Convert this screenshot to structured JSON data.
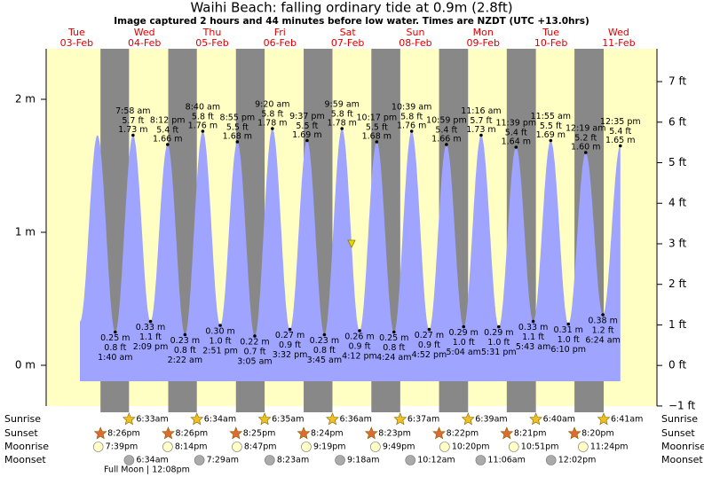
{
  "chart_data": {
    "type": "tide",
    "title": "Waihi Beach: falling  ordinary tide at 0.9m (2.8ft)",
    "subtitle": "Image captured 2 hours and 44 minutes before low water. Times are NZDT (UTC +13.0hrs)",
    "ylim": [
      -0.3,
      2.38
    ],
    "yticks": [
      {
        "value": 0,
        "label": "0 m"
      },
      {
        "value": 1,
        "label": "1 m"
      },
      {
        "value": 2,
        "label": "2 m"
      }
    ],
    "y2lim": [
      -0.98,
      7.81
    ],
    "y2ticks": [
      {
        "value": -1,
        "label": "−1 ft"
      },
      {
        "value": 0,
        "label": "0 ft"
      },
      {
        "value": 1,
        "label": "1 ft"
      },
      {
        "value": 2,
        "label": "2 ft"
      },
      {
        "value": 3,
        "label": "3 ft"
      },
      {
        "value": 4,
        "label": "4 ft"
      },
      {
        "value": 5,
        "label": "5 ft"
      },
      {
        "value": 6,
        "label": "6 ft"
      },
      {
        "value": 7,
        "label": "7 ft"
      }
    ],
    "row_labels": {
      "sunrise": "Sunrise",
      "sunset": "Sunset",
      "moonrise": "Moonrise",
      "moonset": "Moonset"
    },
    "moon_phase": {
      "name": "Full Moon",
      "time": "| 12:08pm"
    },
    "days": [
      {
        "weekday": "Tue",
        "date": "03-Feb",
        "sunrise": null,
        "sunset": "8:26pm",
        "moonrise": "7:39pm",
        "moonset": null,
        "tides": []
      },
      {
        "weekday": "Wed",
        "date": "04-Feb",
        "sunrise": "6:33am",
        "sunset": "8:26pm",
        "moonrise": "8:14pm",
        "moonset": "6:34am",
        "tides": [
          {
            "time": "1:40 am",
            "m": {
              "value": 0.25,
              "label": "0.25 m"
            },
            "ft": {
              "value": 0.8,
              "label": "0.8 ft"
            }
          },
          {
            "time": "7:58 am",
            "m": {
              "value": 1.73,
              "label": "1.73 m"
            },
            "ft": {
              "value": 5.7,
              "label": "5.7 ft"
            }
          },
          {
            "time": "2:09 pm",
            "m": {
              "value": 0.33,
              "label": "0.33 m"
            },
            "ft": {
              "value": 1.1,
              "label": "1.1 ft"
            }
          },
          {
            "time": "8:12 pm",
            "m": {
              "value": 1.66,
              "label": "1.66 m"
            },
            "ft": {
              "value": 5.4,
              "label": "5.4 ft"
            }
          }
        ]
      },
      {
        "weekday": "Thu",
        "date": "05-Feb",
        "sunrise": "6:34am",
        "sunset": "8:25pm",
        "moonrise": "8:47pm",
        "moonset": "7:29am",
        "tides": [
          {
            "time": "2:22 am",
            "m": {
              "value": 0.23,
              "label": "0.23 m"
            },
            "ft": {
              "value": 0.8,
              "label": "0.8 ft"
            }
          },
          {
            "time": "8:40 am",
            "m": {
              "value": 1.76,
              "label": "1.76 m"
            },
            "ft": {
              "value": 5.8,
              "label": "5.8 ft"
            }
          },
          {
            "time": "2:51 pm",
            "m": {
              "value": 0.3,
              "label": "0.30 m"
            },
            "ft": {
              "value": 1.0,
              "label": "1.0 ft"
            }
          },
          {
            "time": "8:55 pm",
            "m": {
              "value": 1.68,
              "label": "1.68 m"
            },
            "ft": {
              "value": 5.5,
              "label": "5.5 ft"
            }
          }
        ]
      },
      {
        "weekday": "Fri",
        "date": "06-Feb",
        "sunrise": "6:35am",
        "sunset": "8:24pm",
        "moonrise": "9:19pm",
        "moonset": "8:23am",
        "tides": [
          {
            "time": "3:05 am",
            "m": {
              "value": 0.22,
              "label": "0.22 m"
            },
            "ft": {
              "value": 0.7,
              "label": "0.7 ft"
            }
          },
          {
            "time": "9:20 am",
            "m": {
              "value": 1.78,
              "label": "1.78 m"
            },
            "ft": {
              "value": 5.8,
              "label": "5.8 ft"
            }
          },
          {
            "time": "3:32 pm",
            "m": {
              "value": 0.27,
              "label": "0.27 m"
            },
            "ft": {
              "value": 0.9,
              "label": "0.9 ft"
            }
          },
          {
            "time": "9:37 pm",
            "m": {
              "value": 1.69,
              "label": "1.69 m"
            },
            "ft": {
              "value": 5.5,
              "label": "5.5 ft"
            }
          }
        ]
      },
      {
        "weekday": "Sat",
        "date": "07-Feb",
        "sunrise": "6:36am",
        "sunset": "8:23pm",
        "moonrise": "9:49pm",
        "moonset": "9:18am",
        "tides": [
          {
            "time": "3:45 am",
            "m": {
              "value": 0.23,
              "label": "0.23 m"
            },
            "ft": {
              "value": 0.8,
              "label": "0.8 ft"
            }
          },
          {
            "time": "9:59 am",
            "m": {
              "value": 1.78,
              "label": "1.78 m"
            },
            "ft": {
              "value": 5.8,
              "label": "5.8 ft"
            }
          },
          {
            "time": "4:12 pm",
            "m": {
              "value": 0.26,
              "label": "0.26 m"
            },
            "ft": {
              "value": 0.9,
              "label": "0.9 ft"
            }
          },
          {
            "time": "10:17 pm",
            "m": {
              "value": 1.68,
              "label": "1.68 m"
            },
            "ft": {
              "value": 5.5,
              "label": "5.5 ft"
            }
          }
        ]
      },
      {
        "weekday": "Sun",
        "date": "08-Feb",
        "sunrise": "6:37am",
        "sunset": "8:22pm",
        "moonrise": "10:20pm",
        "moonset": "10:12am",
        "tides": [
          {
            "time": "4:24 am",
            "m": {
              "value": 0.25,
              "label": "0.25 m"
            },
            "ft": {
              "value": 0.8,
              "label": "0.8 ft"
            }
          },
          {
            "time": "10:39 am",
            "m": {
              "value": 1.76,
              "label": "1.76 m"
            },
            "ft": {
              "value": 5.8,
              "label": "5.8 ft"
            }
          },
          {
            "time": "4:52 pm",
            "m": {
              "value": 0.27,
              "label": "0.27 m"
            },
            "ft": {
              "value": 0.9,
              "label": "0.9 ft"
            }
          },
          {
            "time": "10:59 pm",
            "m": {
              "value": 1.66,
              "label": "1.66 m"
            },
            "ft": {
              "value": 5.4,
              "label": "5.4 ft"
            }
          }
        ]
      },
      {
        "weekday": "Mon",
        "date": "09-Feb",
        "sunrise": "6:39am",
        "sunset": "8:21pm",
        "moonrise": "10:51pm",
        "moonset": "11:06am",
        "tides": [
          {
            "time": "5:04 am",
            "m": {
              "value": 0.29,
              "label": "0.29 m"
            },
            "ft": {
              "value": 1.0,
              "label": "1.0 ft"
            }
          },
          {
            "time": "11:16 am",
            "m": {
              "value": 1.73,
              "label": "1.73 m"
            },
            "ft": {
              "value": 5.7,
              "label": "5.7 ft"
            }
          },
          {
            "time": "5:31 pm",
            "m": {
              "value": 0.29,
              "label": "0.29 m"
            },
            "ft": {
              "value": 1.0,
              "label": "1.0 ft"
            }
          },
          {
            "time": "11:39 pm",
            "m": {
              "value": 1.64,
              "label": "1.64 m"
            },
            "ft": {
              "value": 5.4,
              "label": "5.4 ft"
            }
          }
        ]
      },
      {
        "weekday": "Tue",
        "date": "10-Feb",
        "sunrise": "6:40am",
        "sunset": "8:20pm",
        "moonrise": "11:24pm",
        "moonset": "12:02pm",
        "tides": [
          {
            "time": "5:43 am",
            "m": {
              "value": 0.33,
              "label": "0.33 m"
            },
            "ft": {
              "value": 1.1,
              "label": "1.1 ft"
            }
          },
          {
            "time": "11:55 am",
            "m": {
              "value": 1.69,
              "label": "1.69 m"
            },
            "ft": {
              "value": 5.5,
              "label": "5.5 ft"
            }
          },
          {
            "time": "6:10 pm",
            "m": {
              "value": 0.31,
              "label": "0.31 m"
            },
            "ft": {
              "value": 1.0,
              "label": "1.0 ft"
            }
          }
        ]
      },
      {
        "weekday": "Wed",
        "date": "11-Feb",
        "sunrise": "6:41am",
        "sunset": null,
        "moonrise": null,
        "moonset": null,
        "tides": [
          {
            "time": "12:19 am",
            "m": {
              "value": 1.6,
              "label": "1.60 m"
            },
            "ft": {
              "value": 5.2,
              "label": "5.2 ft"
            }
          },
          {
            "time": "6:24 am",
            "m": {
              "value": 0.38,
              "label": "0.38 m"
            },
            "ft": {
              "value": 1.2,
              "label": "1.2 ft"
            }
          },
          {
            "time": "12:35 pm",
            "m": {
              "value": 1.65,
              "label": "1.65 m"
            },
            "ft": {
              "value": 5.4,
              "label": "5.4 ft"
            }
          }
        ]
      }
    ]
  }
}
